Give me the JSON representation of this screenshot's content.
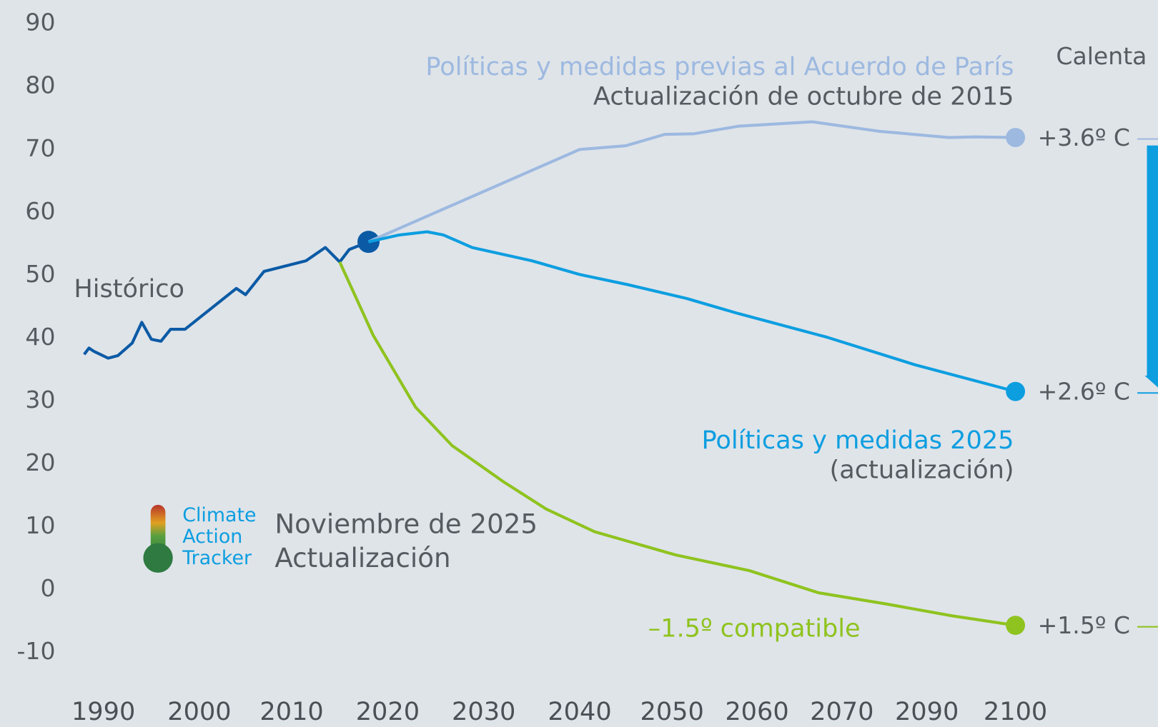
{
  "chart_data": {
    "type": "line",
    "title": "Calenta",
    "yticks": [
      -10,
      0,
      10,
      20,
      30,
      40,
      50,
      60,
      70,
      80,
      90
    ],
    "ylim": [
      -10,
      90
    ],
    "xticks": [
      1990,
      2000,
      2010,
      2020,
      2030,
      2040,
      2050,
      2060,
      2070,
      2090,
      2100
    ],
    "series": [
      {
        "name": "Histórico",
        "color": "#0b5aa5",
        "x": [
          1988,
          1988.5,
          1989,
          1990.5,
          1991.5,
          1993,
          1994,
          1995,
          1996,
          1997,
          1998.5,
          2004,
          2005,
          2007,
          2011.5,
          2013.5,
          2015,
          2016,
          2018
        ],
        "values": [
          37.4,
          38.4,
          37.9,
          36.8,
          37.2,
          39.2,
          42.5,
          39.8,
          39.5,
          41.4,
          41.4,
          47.9,
          46.9,
          50.6,
          52.3,
          54.4,
          52.1,
          54.1,
          55.3
        ]
      },
      {
        "name": "Políticas y medidas previas al Acuerdo de París",
        "subtitle": "Actualización de octubre de 2015",
        "end_label": "+3.6º C",
        "color": "#9db9e0",
        "x": [
          2018,
          2040,
          2045,
          2049.2,
          2052.6,
          2057.8,
          2066.5,
          2078.7,
          2092.5,
          2095.4,
          2100
        ],
        "values": [
          55.3,
          70.0,
          70.6,
          72.4,
          72.5,
          73.7,
          74.4,
          72.9,
          71.9,
          72.0,
          71.9
        ]
      },
      {
        "name": "Políticas y medidas 2025",
        "subtitle": "(actualización)",
        "end_label": "+2.6º C",
        "color": "#0d9ee0",
        "x": [
          2018,
          2021.2,
          2024.1,
          2025.8,
          2028.8,
          2035,
          2040,
          2045.2,
          2051.7,
          2057.8,
          2068.3,
          2087.4,
          2100
        ],
        "values": [
          55.3,
          56.4,
          56.9,
          56.4,
          54.4,
          52.3,
          50.1,
          48.5,
          46.3,
          43.9,
          40.1,
          35.7,
          31.5
        ]
      },
      {
        "name": "–1.5º compatible",
        "end_label": "+1.5º C",
        "color": "#8fc31f",
        "x": [
          2015,
          2018.5,
          2022.9,
          2026.7,
          2032,
          2036.5,
          2041.6,
          2050.4,
          2059.1,
          2067.2,
          2080.4,
          2092.9,
          2100
        ],
        "values": [
          52.1,
          40.4,
          29.0,
          22.9,
          17.2,
          12.8,
          9.2,
          5.5,
          3.0,
          -0.5,
          -2.3,
          -4.2,
          -5.7
        ]
      }
    ],
    "logo": [
      "Climate",
      "Action",
      "Tracker"
    ],
    "update_note": [
      "Noviembre de 2025",
      "Actualización"
    ]
  }
}
